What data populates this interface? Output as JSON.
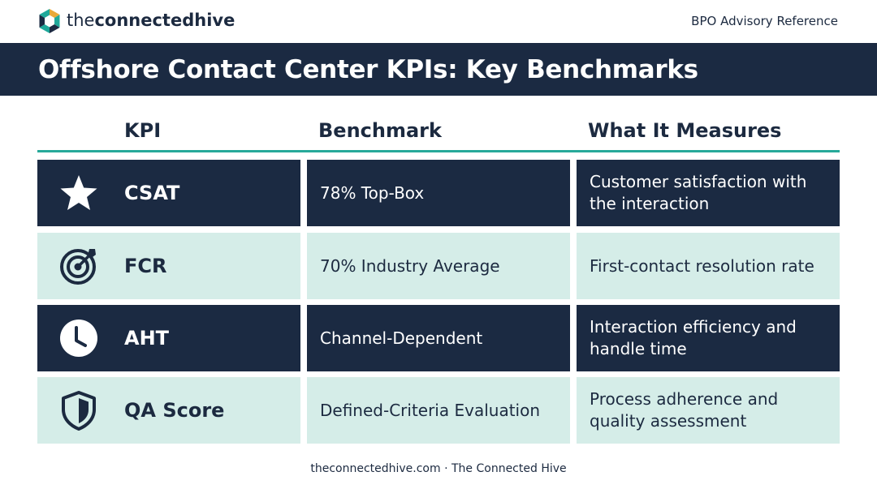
{
  "header": {
    "brand_light": "the",
    "brand_bold": "connectedhive",
    "reference": "BPO Advisory Reference",
    "logo_icon": "hexagon-logo-icon"
  },
  "title": "Offshore Contact Center KPIs: Key Benchmarks",
  "table": {
    "columns": [
      "KPI",
      "Benchmark",
      "What It Measures"
    ],
    "rows": [
      {
        "kpi": "CSAT",
        "benchmark": "78% Top-Box",
        "measures": "Customer satisfaction with the interaction",
        "icon": "star-icon"
      },
      {
        "kpi": "FCR",
        "benchmark": "70% Industry Average",
        "measures": "First-contact resolution rate",
        "icon": "target-icon"
      },
      {
        "kpi": "AHT",
        "benchmark": "Channel-Dependent",
        "measures": "Interaction efficiency and handle time",
        "icon": "clock-icon"
      },
      {
        "kpi": "QA Score",
        "benchmark": "Defined-Criteria Evaluation",
        "measures": "Process adherence and quality assessment",
        "icon": "shield-icon"
      }
    ]
  },
  "footer": "theconnectedhive.com · The Connected Hive",
  "colors": {
    "navy": "#1b2a42",
    "mint": "#d5ede8",
    "teal_accent": "#27a99a",
    "logo_teal": "#1fa89a",
    "logo_gold": "#e8a93a"
  }
}
